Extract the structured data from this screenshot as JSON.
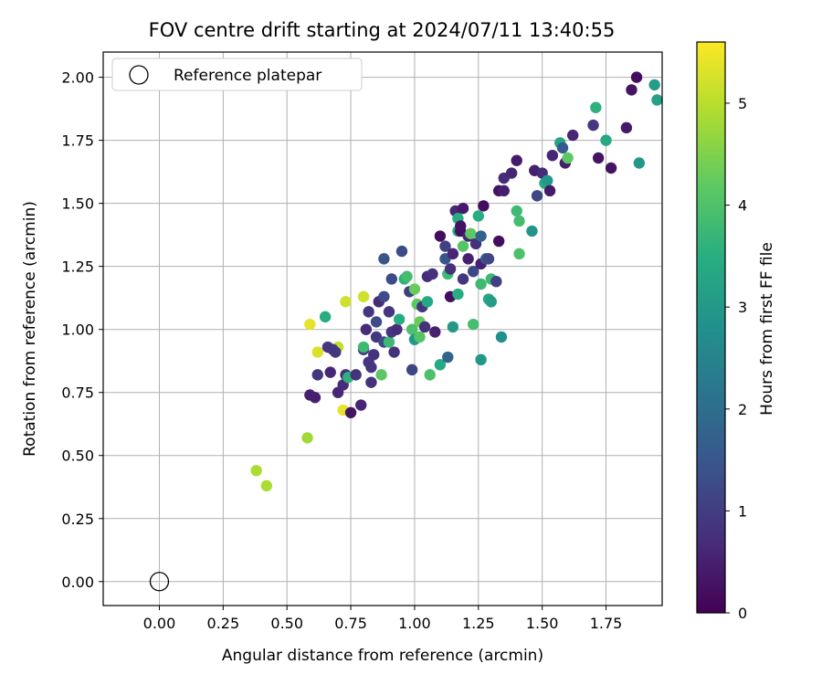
{
  "chart_data": {
    "type": "scatter",
    "title": "FOV centre drift starting at 2024/07/11 13:40:55",
    "xlabel": "Angular distance from reference (arcmin)",
    "ylabel": "Rotation from reference (arcmin)",
    "xlim": [
      -0.22,
      1.97
    ],
    "ylim": [
      -0.095,
      2.1
    ],
    "xticks": [
      "0.00",
      "0.25",
      "0.50",
      "0.75",
      "1.00",
      "1.25",
      "1.50",
      "1.75"
    ],
    "yticks": [
      "0.00",
      "0.25",
      "0.50",
      "0.75",
      "1.00",
      "1.25",
      "1.50",
      "1.75",
      "2.00"
    ],
    "grid": true,
    "legend": {
      "placement": "top-left",
      "entries": [
        "Reference platepar"
      ]
    },
    "reference_point": {
      "x": 0.0,
      "y": 0.0
    },
    "colorbar": {
      "label": "Hours from first FF file",
      "colormap": "viridis",
      "range": [
        0,
        5.6
      ],
      "ticks": [
        "0",
        "1",
        "2",
        "3",
        "4",
        "5"
      ]
    },
    "series": [
      {
        "color_by": "hours",
        "points": [
          [
            0.38,
            0.44,
            4.9
          ],
          [
            0.42,
            0.38,
            4.9
          ],
          [
            0.58,
            0.57,
            4.8
          ],
          [
            0.59,
            1.02,
            5.4
          ],
          [
            0.62,
            0.91,
            5.3
          ],
          [
            0.7,
            0.93,
            5.1
          ],
          [
            0.72,
            0.68,
            5.4
          ],
          [
            0.73,
            1.11,
            5.2
          ],
          [
            0.8,
            1.13,
            5.2
          ],
          [
            0.59,
            0.74,
            0.5
          ],
          [
            0.61,
            0.73,
            0.5
          ],
          [
            0.62,
            0.82,
            0.9
          ],
          [
            0.65,
            1.05,
            3.5
          ],
          [
            0.66,
            0.93,
            0.9
          ],
          [
            0.67,
            0.83,
            0.6
          ],
          [
            0.68,
            0.92,
            0.9
          ],
          [
            0.69,
            0.91,
            0.9
          ],
          [
            0.7,
            0.75,
            0.6
          ],
          [
            0.72,
            0.78,
            0.7
          ],
          [
            0.73,
            0.82,
            0.8
          ],
          [
            0.74,
            0.81,
            3.6
          ],
          [
            0.75,
            0.67,
            0.3
          ],
          [
            0.77,
            0.82,
            0.8
          ],
          [
            0.79,
            0.7,
            0.6
          ],
          [
            0.8,
            0.92,
            0.9
          ],
          [
            0.8,
            0.93,
            3.8
          ],
          [
            0.81,
            1.0,
            0.7
          ],
          [
            0.82,
            0.87,
            0.9
          ],
          [
            0.82,
            1.07,
            0.9
          ],
          [
            0.83,
            0.79,
            0.8
          ],
          [
            0.83,
            0.85,
            0.9
          ],
          [
            0.84,
            0.9,
            0.8
          ],
          [
            0.85,
            0.97,
            0.9
          ],
          [
            0.85,
            1.03,
            1.3
          ],
          [
            0.86,
            1.11,
            0.7
          ],
          [
            0.87,
            0.82,
            4.2
          ],
          [
            0.88,
            0.95,
            1.3
          ],
          [
            0.88,
            1.13,
            1.3
          ],
          [
            0.88,
            1.28,
            1.5
          ],
          [
            0.9,
            0.95,
            3.8
          ],
          [
            0.9,
            1.07,
            0.9
          ],
          [
            0.91,
            0.99,
            0.9
          ],
          [
            0.91,
            1.2,
            1.3
          ],
          [
            0.92,
            0.91,
            0.8
          ],
          [
            0.93,
            1.0,
            0.7
          ],
          [
            0.94,
            1.04,
            3.5
          ],
          [
            0.95,
            1.31,
            1.3
          ],
          [
            0.96,
            1.2,
            3.6
          ],
          [
            0.97,
            1.21,
            3.9
          ],
          [
            0.98,
            1.15,
            1.0
          ],
          [
            0.99,
            0.84,
            1.2
          ],
          [
            0.99,
            1.0,
            4.0
          ],
          [
            1.0,
            0.96,
            3.0
          ],
          [
            1.0,
            1.16,
            4.3
          ],
          [
            1.01,
            1.1,
            4.2
          ],
          [
            1.02,
            1.03,
            4.3
          ],
          [
            1.02,
            0.97,
            4.1
          ],
          [
            1.03,
            1.09,
            0.9
          ],
          [
            1.04,
            1.01,
            0.8
          ],
          [
            1.05,
            1.11,
            3.4
          ],
          [
            1.05,
            1.21,
            0.7
          ],
          [
            1.06,
            0.82,
            4.0
          ],
          [
            1.07,
            1.22,
            0.8
          ],
          [
            1.08,
            0.99,
            0.5
          ],
          [
            1.1,
            0.86,
            3.4
          ],
          [
            1.1,
            1.37,
            0.2
          ],
          [
            1.12,
            1.28,
            1.5
          ],
          [
            1.12,
            1.33,
            1.1
          ],
          [
            1.13,
            0.89,
            1.8
          ],
          [
            1.13,
            1.22,
            3.8
          ],
          [
            1.14,
            1.13,
            0.2
          ],
          [
            1.14,
            1.24,
            0.8
          ],
          [
            1.15,
            1.01,
            3.0
          ],
          [
            1.15,
            1.3,
            0.6
          ],
          [
            1.16,
            1.47,
            0.6
          ],
          [
            1.17,
            1.14,
            3.5
          ],
          [
            1.17,
            1.39,
            3.4
          ],
          [
            1.17,
            1.44,
            3.5
          ],
          [
            1.18,
            1.39,
            0.2
          ],
          [
            1.18,
            1.41,
            0.3
          ],
          [
            1.19,
            1.2,
            0.9
          ],
          [
            1.19,
            1.33,
            4.1
          ],
          [
            1.19,
            1.48,
            0.4
          ],
          [
            1.21,
            1.28,
            0.5
          ],
          [
            1.21,
            1.37,
            0.6
          ],
          [
            1.22,
            1.38,
            4.2
          ],
          [
            1.23,
            1.02,
            3.9
          ],
          [
            1.23,
            1.23,
            1.2
          ],
          [
            1.24,
            1.34,
            0.8
          ],
          [
            1.25,
            1.45,
            3.5
          ],
          [
            1.26,
            0.88,
            3.0
          ],
          [
            1.26,
            1.18,
            3.8
          ],
          [
            1.26,
            1.26,
            0.5
          ],
          [
            1.26,
            1.37,
            1.8
          ],
          [
            1.27,
            1.49,
            0.2
          ],
          [
            1.28,
            1.28,
            1.6
          ],
          [
            1.29,
            1.28,
            1.2
          ],
          [
            1.29,
            1.12,
            3.4
          ],
          [
            1.3,
            1.2,
            3.8
          ],
          [
            1.3,
            1.11,
            3.1
          ],
          [
            1.32,
            1.19,
            1.1
          ],
          [
            1.33,
            1.35,
            0.2
          ],
          [
            1.33,
            1.55,
            0.3
          ],
          [
            1.34,
            0.97,
            2.8
          ],
          [
            1.35,
            1.55,
            0.5
          ],
          [
            1.35,
            1.6,
            0.7
          ],
          [
            1.38,
            1.62,
            0.6
          ],
          [
            1.4,
            1.67,
            0.4
          ],
          [
            1.4,
            1.47,
            3.8
          ],
          [
            1.41,
            1.43,
            3.9
          ],
          [
            1.41,
            1.3,
            4.0
          ],
          [
            1.46,
            1.39,
            2.9
          ],
          [
            1.47,
            1.63,
            0.5
          ],
          [
            1.48,
            1.53,
            1.2
          ],
          [
            1.5,
            1.62,
            0.7
          ],
          [
            1.51,
            1.58,
            3.4
          ],
          [
            1.52,
            1.59,
            3.0
          ],
          [
            1.53,
            1.55,
            0.4
          ],
          [
            1.54,
            1.69,
            0.6
          ],
          [
            1.57,
            1.74,
            3.3
          ],
          [
            1.58,
            1.72,
            1.6
          ],
          [
            1.59,
            1.66,
            0.5
          ],
          [
            1.6,
            1.68,
            4.2
          ],
          [
            1.62,
            1.77,
            0.6
          ],
          [
            1.7,
            1.81,
            0.9
          ],
          [
            1.71,
            1.88,
            3.6
          ],
          [
            1.72,
            1.68,
            0.3
          ],
          [
            1.75,
            1.75,
            3.4
          ],
          [
            1.77,
            1.64,
            0.3
          ],
          [
            1.83,
            1.8,
            0.4
          ],
          [
            1.85,
            1.95,
            0.3
          ],
          [
            1.87,
            2.0,
            0.2
          ],
          [
            1.88,
            1.66,
            3.0
          ],
          [
            1.94,
            1.97,
            3.1
          ],
          [
            1.95,
            1.91,
            3.2
          ]
        ]
      }
    ]
  }
}
